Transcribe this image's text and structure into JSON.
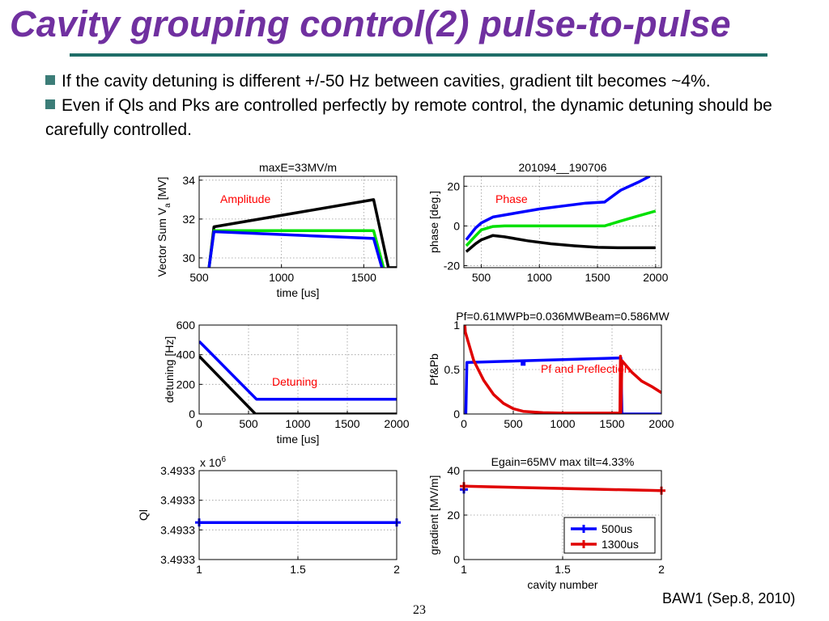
{
  "slide": {
    "title": "Cavity grouping control(2) pulse-to-pulse",
    "bullets": [
      "If the cavity detuning is different +/-50 Hz between cavities, gradient tilt becomes ~4%.",
      "Even if Qls and Pks are controlled perfectly by remote control, the dynamic detuning should be carefully controlled."
    ],
    "footer": {
      "credit": "BAW1 (Sep.8, 2010)",
      "page_number": "23"
    }
  },
  "colors": {
    "title": "#7030A0",
    "rule": "#1F6E68",
    "bullet": "#3C7D78",
    "black": "#000000",
    "green": "#00E000",
    "blue": "#0000FF",
    "red": "#E00000",
    "annotation": "#FF0000"
  },
  "chart_data": [
    {
      "id": "amplitude",
      "type": "line",
      "title": "maxE=33MV/m",
      "xlabel": "time [us]",
      "ylabel": "Vector Sum V_a [MV]",
      "ylabel_parts": {
        "main": "Vector Sum V",
        "sub": "a",
        "unit": " [MV]"
      },
      "annotation": "Amplitude",
      "xlim": [
        500,
        1700
      ],
      "ylim": [
        29.5,
        34.2
      ],
      "xticks": [
        500,
        1000,
        1500
      ],
      "yticks": [
        30,
        32,
        34
      ],
      "grid": true,
      "series": [
        {
          "color": "#000000",
          "x": [
            560,
            590,
            1560,
            1650,
            1700
          ],
          "y": [
            29.5,
            31.6,
            33.0,
            29.5,
            29.5
          ]
        },
        {
          "color": "#00E000",
          "x": [
            560,
            590,
            1560,
            1620
          ],
          "y": [
            29.5,
            31.4,
            31.4,
            29.5
          ]
        },
        {
          "color": "#0000FF",
          "x": [
            560,
            590,
            1560,
            1610
          ],
          "y": [
            29.5,
            31.35,
            31.0,
            29.5
          ]
        }
      ]
    },
    {
      "id": "phase",
      "type": "line",
      "title": "201094__190706",
      "xlabel": "",
      "ylabel": "phase [deg.]",
      "annotation": "Phase",
      "xlim": [
        350,
        2050
      ],
      "ylim": [
        -21,
        25
      ],
      "xticks": [
        500,
        1000,
        1500,
        2000
      ],
      "yticks": [
        -20,
        0,
        20
      ],
      "grid": true,
      "series": [
        {
          "color": "#0000FF",
          "x": [
            370,
            450,
            500,
            600,
            800,
            1000,
            1200,
            1400,
            1560,
            1700,
            1850,
            1950
          ],
          "y": [
            -7,
            -1,
            1.5,
            4.5,
            6.5,
            8.5,
            10,
            11.5,
            12,
            18,
            22,
            25
          ]
        },
        {
          "color": "#00E000",
          "x": [
            370,
            450,
            500,
            600,
            700,
            800,
            1000,
            1200,
            1400,
            1560,
            1700,
            1850,
            2000
          ],
          "y": [
            -10,
            -5,
            -2,
            -0.3,
            0,
            0,
            0,
            0,
            0,
            0,
            2.5,
            5,
            7.5
          ]
        },
        {
          "color": "#000000",
          "x": [
            370,
            450,
            500,
            600,
            700,
            900,
            1100,
            1300,
            1500,
            1700,
            1900,
            2000
          ],
          "y": [
            -13,
            -9,
            -7,
            -4.8,
            -5.5,
            -7.5,
            -9,
            -10,
            -10.8,
            -11,
            -11,
            -11
          ]
        }
      ]
    },
    {
      "id": "detuning",
      "type": "line",
      "title": "",
      "xlabel": "time [us]",
      "ylabel": "detuning [Hz]",
      "annotation": "Detuning",
      "xlim": [
        0,
        2000
      ],
      "ylim": [
        0,
        600
      ],
      "xticks": [
        0,
        500,
        1000,
        1500,
        2000
      ],
      "yticks": [
        0,
        200,
        400,
        600
      ],
      "grid": true,
      "series": [
        {
          "color": "#000000",
          "x": [
            0,
            570,
            2000
          ],
          "y": [
            390,
            0,
            0
          ]
        },
        {
          "color": "#0000FF",
          "x": [
            0,
            580,
            2000
          ],
          "y": [
            490,
            100,
            100
          ]
        }
      ]
    },
    {
      "id": "pf-pb",
      "type": "line",
      "title": "Pf=0.61MWPb=0.036MWBeam=0.586MW",
      "xlabel": "",
      "ylabel": "Pf&Pb",
      "annotation": "Pf and Preflection",
      "xlim": [
        0,
        2000
      ],
      "ylim": [
        0,
        1
      ],
      "xticks": [
        0,
        500,
        1000,
        1500,
        2000
      ],
      "yticks": [
        0,
        0.5,
        1
      ],
      "grid": true,
      "series": [
        {
          "color": "#0000FF",
          "x": [
            20,
            30,
            1580,
            1590,
            1600,
            2000
          ],
          "y": [
            0,
            0.58,
            0.63,
            0.63,
            0,
            0
          ]
        },
        {
          "color": "#E00000",
          "x": [
            10,
            15,
            60,
            100,
            200,
            300,
            400,
            500,
            600,
            800,
            1000,
            1200,
            1400,
            1575,
            1580,
            1585,
            1590,
            1600,
            1700,
            1800,
            1900,
            2000
          ],
          "y": [
            1,
            0.92,
            0.75,
            0.6,
            0.38,
            0.22,
            0.12,
            0.06,
            0.03,
            0.015,
            0.01,
            0.01,
            0.01,
            0.01,
            0.02,
            0.65,
            0.02,
            0.6,
            0.47,
            0.37,
            0.31,
            0.24
          ]
        }
      ],
      "markers": [
        {
          "color": "#0000FF",
          "x": 600,
          "y": 0.57
        }
      ]
    },
    {
      "id": "ql",
      "type": "line",
      "title": "",
      "xlabel": "",
      "ylabel": "Ql",
      "scale_note": {
        "base": "x 10",
        "exp": "6"
      },
      "xlim": [
        1,
        2
      ],
      "ylim": [
        0,
        3
      ],
      "xticks": [
        1,
        1.5,
        2
      ],
      "yticks": [
        0,
        1,
        2,
        3
      ],
      "yticklabels": [
        "3.4933",
        "3.4933",
        "3.4933",
        "3.4933"
      ],
      "grid": true,
      "series": [
        {
          "color": "#0000FF",
          "x": [
            1,
            2
          ],
          "y": [
            1.25,
            1.25
          ],
          "marker": "+"
        }
      ]
    },
    {
      "id": "gradient",
      "type": "line",
      "title": "Egain=65MV max tilt=4.33%",
      "xlabel": "cavity number",
      "ylabel": "gradient [MV/m]",
      "xlim": [
        1,
        2
      ],
      "ylim": [
        0,
        40
      ],
      "xticks": [
        1,
        1.5,
        2
      ],
      "yticks": [
        0,
        20,
        40
      ],
      "grid": true,
      "series": [
        {
          "name": "500us",
          "color": "#0000FF",
          "x": [
            1
          ],
          "y": [
            31.5
          ],
          "marker": "+"
        },
        {
          "name": "1300us",
          "color": "#E00000",
          "x": [
            1,
            2
          ],
          "y": [
            33,
            31
          ],
          "marker": "+"
        }
      ],
      "legend": "bottom-right"
    }
  ]
}
